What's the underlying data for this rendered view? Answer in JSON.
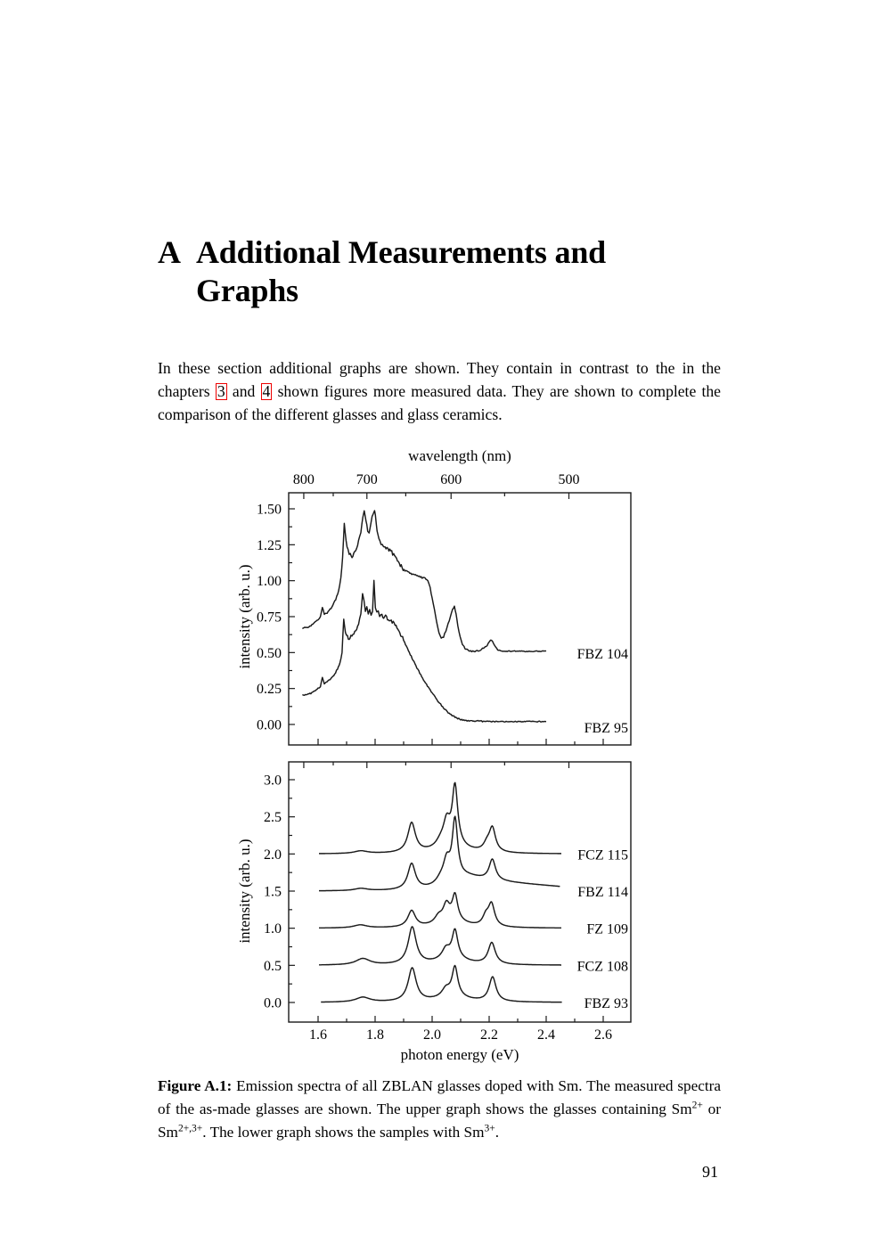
{
  "page": {
    "number": "91"
  },
  "heading": {
    "chapter_letter": "A",
    "line1": "Additional Measurements and",
    "line2": "Graphs"
  },
  "paragraph": {
    "segments": [
      {
        "t": "In these section additional graphs are shown.  They contain in contrast to the in the chapters "
      },
      {
        "link": "3"
      },
      {
        "t": " and "
      },
      {
        "link": "4"
      },
      {
        "t": " shown figures more measured data. They are shown to complete the comparison of the different glasses and glass ceramics."
      }
    ]
  },
  "caption": {
    "label": "Figure A.1:",
    "segments": [
      {
        "t": " Emission spectra of all ZBLAN glasses doped with Sm.  The measured spectra of the as-made glasses are shown.  The upper graph shows the glasses containing Sm"
      },
      {
        "sup": "2+"
      },
      {
        "t": " or Sm"
      },
      {
        "sup": "2+,3+"
      },
      {
        "t": ". The lower graph shows the samples with Sm"
      },
      {
        "sup": "3+"
      },
      {
        "t": "."
      }
    ]
  },
  "colors": {
    "link_box": "#ee0000",
    "curve": "#1a1a1a",
    "text": "#000000"
  },
  "chart_data": [
    {
      "type": "line",
      "position": "upper",
      "top_axis_label": "wavelength (nm)",
      "ylabel": "intensity (arb. u.)",
      "x_is": "photon energy (eV), shared with lower graph",
      "xlim": [
        1.5,
        2.7
      ],
      "ylim": [
        -0.14,
        1.61
      ],
      "y_ticks_major": [
        0.0,
        0.25,
        0.5,
        0.75,
        1.0,
        1.25,
        1.5
      ],
      "y_tick_labels": [
        "0.00",
        "0.25",
        "0.50",
        "0.75",
        "1.00",
        "1.25",
        "1.50"
      ],
      "y_ticks_minor_step": 0.125,
      "wavelength_ticks_major_nm": [
        800,
        700,
        600,
        500
      ],
      "wavelength_ticks_minor_nm": [
        750,
        650,
        550
      ],
      "bottom_edge_energy_ticks": [
        1.6,
        1.7,
        1.8,
        1.9,
        2.0,
        2.1,
        2.2,
        2.3,
        2.4,
        2.5,
        2.6
      ],
      "grid": false,
      "legend": "labels at right end of each curve",
      "series": [
        {
          "name": "FBZ 104",
          "points": [
            [
              1.545,
              0.67
            ],
            [
              1.56,
              0.675
            ],
            [
              1.575,
              0.69
            ],
            [
              1.59,
              0.71
            ],
            [
              1.6,
              0.73
            ],
            [
              1.608,
              0.75
            ],
            [
              1.615,
              0.81
            ],
            [
              1.622,
              0.77
            ],
            [
              1.632,
              0.775
            ],
            [
              1.642,
              0.8
            ],
            [
              1.652,
              0.83
            ],
            [
              1.662,
              0.87
            ],
            [
              1.672,
              0.93
            ],
            [
              1.68,
              1.02
            ],
            [
              1.686,
              1.16
            ],
            [
              1.692,
              1.4
            ],
            [
              1.698,
              1.28
            ],
            [
              1.705,
              1.21
            ],
            [
              1.713,
              1.18
            ],
            [
              1.722,
              1.17
            ],
            [
              1.732,
              1.21
            ],
            [
              1.742,
              1.27
            ],
            [
              1.75,
              1.34
            ],
            [
              1.757,
              1.43
            ],
            [
              1.762,
              1.48
            ],
            [
              1.768,
              1.41
            ],
            [
              1.774,
              1.35
            ],
            [
              1.779,
              1.34
            ],
            [
              1.786,
              1.41
            ],
            [
              1.793,
              1.47
            ],
            [
              1.798,
              1.5
            ],
            [
              1.804,
              1.4
            ],
            [
              1.81,
              1.31
            ],
            [
              1.817,
              1.27
            ],
            [
              1.825,
              1.25
            ],
            [
              1.835,
              1.24
            ],
            [
              1.845,
              1.22
            ],
            [
              1.855,
              1.21
            ],
            [
              1.865,
              1.18
            ],
            [
              1.875,
              1.15
            ],
            [
              1.885,
              1.12
            ],
            [
              1.895,
              1.09
            ],
            [
              1.905,
              1.07
            ],
            [
              1.915,
              1.06
            ],
            [
              1.925,
              1.05
            ],
            [
              1.935,
              1.04
            ],
            [
              1.945,
              1.04
            ],
            [
              1.955,
              1.03
            ],
            [
              1.965,
              1.02
            ],
            [
              1.975,
              1.02
            ],
            [
              1.985,
              1.0
            ],
            [
              1.993,
              0.95
            ],
            [
              2.0,
              0.88
            ],
            [
              2.008,
              0.8
            ],
            [
              2.016,
              0.71
            ],
            [
              2.024,
              0.64
            ],
            [
              2.032,
              0.6
            ],
            [
              2.04,
              0.61
            ],
            [
              2.048,
              0.65
            ],
            [
              2.056,
              0.7
            ],
            [
              2.064,
              0.75
            ],
            [
              2.072,
              0.8
            ],
            [
              2.078,
              0.82
            ],
            [
              2.084,
              0.77
            ],
            [
              2.09,
              0.69
            ],
            [
              2.098,
              0.61
            ],
            [
              2.106,
              0.56
            ],
            [
              2.115,
              0.53
            ],
            [
              2.125,
              0.515
            ],
            [
              2.135,
              0.51
            ],
            [
              2.15,
              0.51
            ],
            [
              2.165,
              0.515
            ],
            [
              2.18,
              0.53
            ],
            [
              2.193,
              0.55
            ],
            [
              2.205,
              0.59
            ],
            [
              2.212,
              0.575
            ],
            [
              2.22,
              0.545
            ],
            [
              2.23,
              0.52
            ],
            [
              2.24,
              0.512
            ],
            [
              2.26,
              0.51
            ],
            [
              2.3,
              0.51
            ],
            [
              2.35,
              0.508
            ],
            [
              2.4,
              0.51
            ]
          ]
        },
        {
          "name": "FBZ 95",
          "points": [
            [
              1.545,
              0.21
            ],
            [
              1.555,
              0.205
            ],
            [
              1.565,
              0.21
            ],
            [
              1.578,
              0.22
            ],
            [
              1.59,
              0.235
            ],
            [
              1.6,
              0.25
            ],
            [
              1.608,
              0.265
            ],
            [
              1.615,
              0.33
            ],
            [
              1.622,
              0.285
            ],
            [
              1.632,
              0.3
            ],
            [
              1.645,
              0.32
            ],
            [
              1.658,
              0.35
            ],
            [
              1.668,
              0.385
            ],
            [
              1.677,
              0.43
            ],
            [
              1.684,
              0.5
            ],
            [
              1.69,
              0.73
            ],
            [
              1.696,
              0.64
            ],
            [
              1.703,
              0.61
            ],
            [
              1.712,
              0.6
            ],
            [
              1.722,
              0.625
            ],
            [
              1.732,
              0.655
            ],
            [
              1.742,
              0.7
            ],
            [
              1.75,
              0.76
            ],
            [
              1.756,
              0.9
            ],
            [
              1.761,
              0.85
            ],
            [
              1.766,
              0.79
            ],
            [
              1.771,
              0.82
            ],
            [
              1.776,
              0.78
            ],
            [
              1.781,
              0.8
            ],
            [
              1.786,
              0.765
            ],
            [
              1.791,
              0.79
            ],
            [
              1.796,
              1.0
            ],
            [
              1.801,
              0.81
            ],
            [
              1.806,
              0.77
            ],
            [
              1.811,
              0.785
            ],
            [
              1.816,
              0.75
            ],
            [
              1.821,
              0.77
            ],
            [
              1.827,
              0.74
            ],
            [
              1.833,
              0.757
            ],
            [
              1.84,
              0.74
            ],
            [
              1.85,
              0.73
            ],
            [
              1.86,
              0.712
            ],
            [
              1.87,
              0.69
            ],
            [
              1.88,
              0.66
            ],
            [
              1.89,
              0.625
            ],
            [
              1.9,
              0.585
            ],
            [
              1.91,
              0.545
            ],
            [
              1.92,
              0.5
            ],
            [
              1.93,
              0.46
            ],
            [
              1.94,
              0.42
            ],
            [
              1.95,
              0.38
            ],
            [
              1.96,
              0.345
            ],
            [
              1.97,
              0.31
            ],
            [
              1.98,
              0.28
            ],
            [
              1.99,
              0.25
            ],
            [
              2.0,
              0.22
            ],
            [
              2.01,
              0.19
            ],
            [
              2.02,
              0.165
            ],
            [
              2.03,
              0.14
            ],
            [
              2.04,
              0.115
            ],
            [
              2.05,
              0.095
            ],
            [
              2.06,
              0.078
            ],
            [
              2.07,
              0.063
            ],
            [
              2.08,
              0.052
            ],
            [
              2.09,
              0.043
            ],
            [
              2.1,
              0.036
            ],
            [
              2.115,
              0.03
            ],
            [
              2.13,
              0.027
            ],
            [
              2.15,
              0.024
            ],
            [
              2.18,
              0.022
            ],
            [
              2.22,
              0.02
            ],
            [
              2.27,
              0.02
            ],
            [
              2.32,
              0.02
            ],
            [
              2.37,
              0.021
            ],
            [
              2.4,
              0.02
            ]
          ]
        }
      ]
    },
    {
      "type": "line",
      "position": "lower",
      "xlabel": "photon energy (eV)",
      "ylabel": "intensity (arb. u.)",
      "xlim": [
        1.5,
        2.7
      ],
      "ylim": [
        -0.26,
        3.24
      ],
      "x_ticks_major": [
        1.6,
        1.8,
        2.0,
        2.2,
        2.4,
        2.6
      ],
      "x_tick_labels": [
        "1.6",
        "1.8",
        "2.0",
        "2.2",
        "2.4",
        "2.6"
      ],
      "x_ticks_minor": [
        1.7,
        1.9,
        2.1,
        2.3,
        2.5
      ],
      "y_ticks_major": [
        0.0,
        0.5,
        1.0,
        1.5,
        2.0,
        2.5,
        3.0
      ],
      "y_tick_labels": [
        "0.0",
        "0.5",
        "1.0",
        "1.5",
        "2.0",
        "2.5",
        "3.0"
      ],
      "y_ticks_minor_step": 0.25,
      "top_edge_wavelength_ticks_nm": {
        "major": [
          800,
          700,
          600,
          500
        ],
        "minor": [
          750,
          650,
          550
        ]
      },
      "grid": false,
      "legend": "labels at right end of each curve",
      "series_note": "curves stacked with vertical offsets; peaks given as [center_eV, height_above_offset, half_width_eV]",
      "series": [
        {
          "name": "FCZ 115",
          "offset": 2.0,
          "range": [
            1.603,
            2.455
          ],
          "peaks": [
            [
              1.75,
              0.035,
              0.028
            ],
            [
              1.928,
              0.4,
              0.016
            ],
            [
              2.03,
              0.08,
              0.02
            ],
            [
              2.051,
              0.3,
              0.014
            ],
            [
              2.08,
              0.79,
              0.0115
            ],
            [
              2.192,
              0.09,
              0.014
            ],
            [
              2.211,
              0.32,
              0.0135
            ],
            [
              2.07,
              0.1,
              0.06
            ]
          ],
          "key_points_abs": {
            "bump_1.75": 2.04,
            "peak_1.93": 2.4,
            "shoulder_2.05": 2.51,
            "main_2.08": 2.95,
            "peak_2.21": 2.36,
            "baseline": 2.0
          }
        },
        {
          "name": "FBZ 114",
          "offset": 1.5,
          "range": [
            1.603,
            2.45
          ],
          "peaks": [
            [
              1.75,
              0.03,
              0.028
            ],
            [
              1.928,
              0.35,
              0.016
            ],
            [
              2.03,
              0.07,
              0.02
            ],
            [
              2.051,
              0.27,
              0.014
            ],
            [
              2.08,
              0.81,
              0.0115
            ],
            [
              2.211,
              0.28,
              0.0135
            ],
            [
              2.07,
              0.1,
              0.06
            ]
          ],
          "tail": {
            "onset": 2.1,
            "height": 0.16,
            "fade": 0.55
          },
          "key_points_abs": {
            "peak_1.93": 1.85,
            "main_2.08": 2.46,
            "peak_2.21": 1.94,
            "tail_2.45": 1.55,
            "baseline": 1.5
          }
        },
        {
          "name": "FZ 109",
          "offset": 1.0,
          "range": [
            1.603,
            2.455
          ],
          "peaks": [
            [
              1.748,
              0.04,
              0.028
            ],
            [
              1.928,
              0.22,
              0.016
            ],
            [
              2.022,
              0.09,
              0.016
            ],
            [
              2.05,
              0.22,
              0.014
            ],
            [
              2.08,
              0.34,
              0.0115
            ],
            [
              2.188,
              0.12,
              0.013
            ],
            [
              2.208,
              0.3,
              0.0135
            ],
            [
              2.07,
              0.09,
              0.06
            ]
          ],
          "key_points_abs": {
            "peak_1.93": 1.24,
            "shoulder_2.05": 1.33,
            "main_2.08": 1.47,
            "peak_2.21": 1.36,
            "baseline": 1.0
          }
        },
        {
          "name": "FCZ 108",
          "offset": 0.5,
          "range": [
            1.603,
            2.455
          ],
          "peaks": [
            [
              1.757,
              0.085,
              0.03
            ],
            [
              1.93,
              0.5,
              0.017
            ],
            [
              2.048,
              0.13,
              0.016
            ],
            [
              2.08,
              0.37,
              0.012
            ],
            [
              2.209,
              0.29,
              0.015
            ],
            [
              2.07,
              0.09,
              0.06
            ]
          ],
          "key_points_abs": {
            "bump_1.76": 0.59,
            "peak_1.93": 1.03,
            "main_2.08": 0.99,
            "peak_2.21": 0.8,
            "baseline": 0.5
          }
        },
        {
          "name": "FBZ 93",
          "offset": 0.0,
          "range": [
            1.61,
            2.455
          ],
          "peaks": [
            [
              1.757,
              0.065,
              0.03
            ],
            [
              1.93,
              0.45,
              0.017
            ],
            [
              2.048,
              0.1,
              0.016
            ],
            [
              2.08,
              0.39,
              0.012
            ],
            [
              2.212,
              0.33,
              0.0145
            ],
            [
              2.07,
              0.08,
              0.06
            ]
          ],
          "key_points_abs": {
            "bump_1.76": 0.07,
            "peak_1.93": 0.46,
            "main_2.08": 0.5,
            "peak_2.21": 0.36,
            "baseline": 0.0
          }
        }
      ]
    }
  ]
}
